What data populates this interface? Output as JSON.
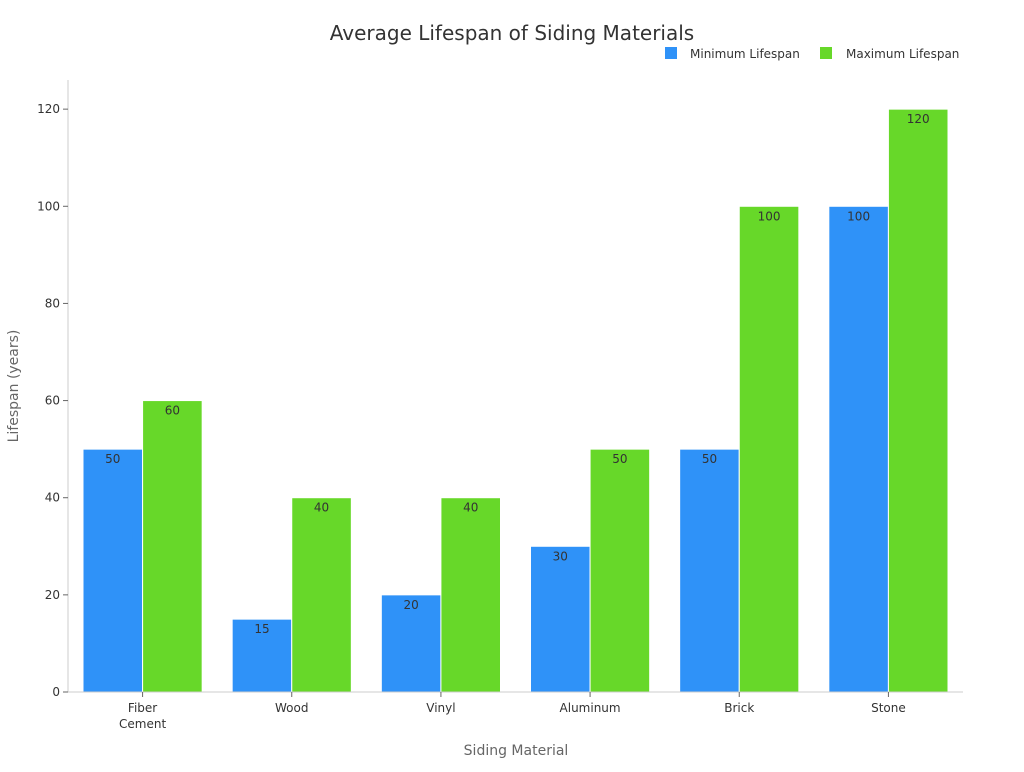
{
  "chart_data": {
    "type": "bar",
    "title": "Average Lifespan of Siding Materials",
    "xlabel": "Siding Material",
    "ylabel": "Lifespan (years)",
    "categories": [
      "Fiber Cement",
      "Wood",
      "Vinyl",
      "Aluminum",
      "Brick",
      "Stone"
    ],
    "category_label_lines": [
      [
        "Fiber",
        "Cement"
      ],
      [
        "Wood"
      ],
      [
        "Vinyl"
      ],
      [
        "Aluminum"
      ],
      [
        "Brick"
      ],
      [
        "Stone"
      ]
    ],
    "series": [
      {
        "name": "Minimum Lifespan",
        "color": "#2f92f8",
        "values": [
          50,
          15,
          20,
          30,
          50,
          100
        ]
      },
      {
        "name": "Maximum Lifespan",
        "color": "#67d829",
        "values": [
          60,
          40,
          40,
          50,
          100,
          120
        ]
      }
    ],
    "ylim": [
      0,
      126
    ],
    "yticks": [
      0,
      20,
      40,
      60,
      80,
      100,
      120
    ],
    "grid": false,
    "legend_position": "top-right",
    "data_labels": true
  }
}
